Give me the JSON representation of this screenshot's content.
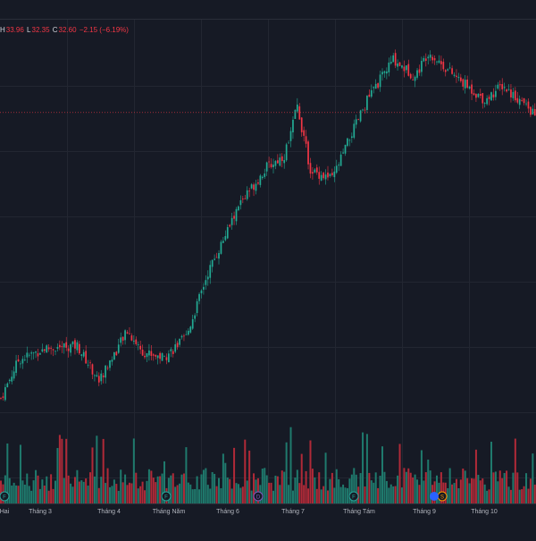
{
  "legend": {
    "h_key": "H",
    "h_val": "33.96",
    "l_key": "L",
    "l_val": "32.35",
    "c_key": "C",
    "c_val": "32.60",
    "change": "−2.15 (−6.19%)"
  },
  "colors": {
    "background": "#161a25",
    "grid": "#222631",
    "up": "#22ab94",
    "down": "#f23645",
    "up_volume": "#1f7a6d",
    "down_volume": "#b02a38",
    "price_line": "#f23645",
    "text": "#b2b5be"
  },
  "chart_data": {
    "type": "candlestick",
    "title": "",
    "xlabel": "",
    "ylabel": "",
    "x_ticks": [
      "Hai",
      "Tháng 3",
      "Tháng 4",
      "Tháng Năm",
      "Tháng 6",
      "Tháng 7",
      "Tháng Tám",
      "Tháng 9",
      "Tháng 10"
    ],
    "grid": true,
    "price_anchors": [
      {
        "i": 0,
        "v": 15.2
      },
      {
        "i": 8,
        "v": 17.8
      },
      {
        "i": 20,
        "v": 18.6
      },
      {
        "i": 35,
        "v": 18.8
      },
      {
        "i": 45,
        "v": 16.4
      },
      {
        "i": 58,
        "v": 19.8
      },
      {
        "i": 65,
        "v": 18.4
      },
      {
        "i": 75,
        "v": 18.0
      },
      {
        "i": 85,
        "v": 19.4
      },
      {
        "i": 95,
        "v": 23.8
      },
      {
        "i": 110,
        "v": 28.6
      },
      {
        "i": 122,
        "v": 31.0
      },
      {
        "i": 130,
        "v": 31.8
      },
      {
        "i": 136,
        "v": 35.2
      },
      {
        "i": 142,
        "v": 30.8
      },
      {
        "i": 152,
        "v": 30.2
      },
      {
        "i": 160,
        "v": 33.0
      },
      {
        "i": 168,
        "v": 35.6
      },
      {
        "i": 180,
        "v": 38.4
      },
      {
        "i": 190,
        "v": 37.2
      },
      {
        "i": 196,
        "v": 38.9
      },
      {
        "i": 210,
        "v": 37.0
      },
      {
        "i": 222,
        "v": 35.6
      },
      {
        "i": 230,
        "v": 36.6
      },
      {
        "i": 238,
        "v": 35.6
      },
      {
        "i": 245,
        "v": 34.6
      }
    ],
    "last_price": 34.75,
    "event_markers": [
      {
        "label": "F",
        "color": "#26a69a"
      },
      {
        "label": "F",
        "color": "#26a69a"
      },
      {
        "label": "D",
        "color": "#7e57c2"
      },
      {
        "label": "F",
        "color": "#26a69a"
      },
      {
        "label": "S",
        "color": "#ff9800"
      }
    ]
  }
}
